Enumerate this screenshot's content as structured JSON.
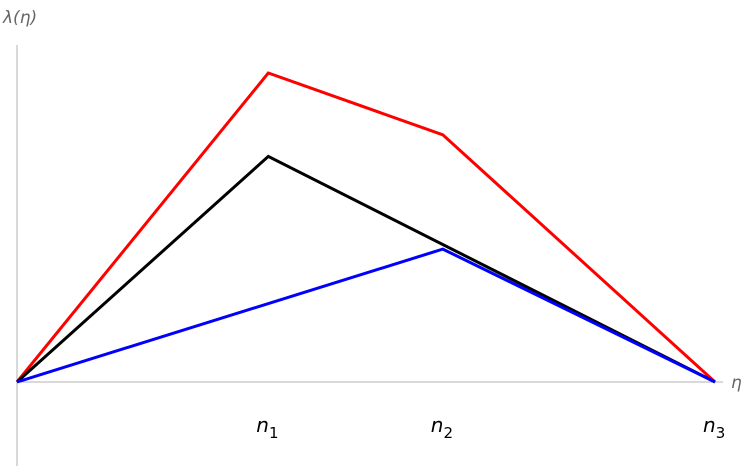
{
  "chart_data": {
    "type": "line",
    "xlabel": "η",
    "ylabel": "λ(η)",
    "x_ticks": [
      {
        "value": 0.36,
        "base": "n",
        "sub": "1"
      },
      {
        "value": 0.61,
        "base": "n",
        "sub": "2"
      },
      {
        "value": 1.0,
        "base": "n",
        "sub": "3"
      }
    ],
    "xlim": [
      0,
      1.0
    ],
    "ylim": [
      -0.24,
      1.0
    ],
    "grid": false,
    "series": [
      {
        "color": "#ff0000",
        "points": [
          [
            0,
            0
          ],
          [
            0.36,
            1.0
          ],
          [
            0.61,
            0.8
          ],
          [
            1.0,
            0
          ]
        ]
      },
      {
        "color": "#000000",
        "points": [
          [
            0,
            0
          ],
          [
            0.36,
            0.73
          ],
          [
            1.0,
            0
          ]
        ]
      },
      {
        "color": "#0000ff",
        "points": [
          [
            0,
            0
          ],
          [
            0.61,
            0.43
          ],
          [
            1.0,
            0
          ]
        ]
      }
    ]
  }
}
